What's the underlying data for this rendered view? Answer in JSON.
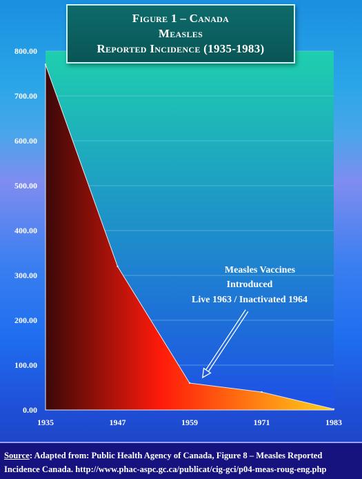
{
  "title": {
    "line1": "Figure 1 – Canada",
    "line2": "Measles",
    "line3": "Reported Incidence (1935-1983)"
  },
  "chart_data": {
    "type": "area",
    "x": [
      1935,
      1947,
      1959,
      1971,
      1983
    ],
    "values": [
      770,
      320,
      60,
      40,
      2
    ],
    "xticks": [
      "1935",
      "1947",
      "1959",
      "1971",
      "1983"
    ],
    "yticks": [
      "0.00",
      "100.00",
      "200.00",
      "300.00",
      "400.00",
      "500.00",
      "600.00",
      "700.00",
      "800.00"
    ],
    "ylim": [
      0,
      800
    ],
    "xlim": [
      1935,
      1983
    ],
    "grid": true,
    "annotation": {
      "lines": [
        "Measles Vaccines",
        "Introduced",
        "Live 1963 / Inactivated 1964"
      ],
      "arrow_target_x": 1963,
      "arrow_target_y": 60
    },
    "colors": {
      "plot_top": "#1ecfae",
      "plot_bottom": "#1e4fe6",
      "area_left": "#3a0808",
      "area_mid": "#ff1a0a",
      "area_right": "#ffd21a",
      "grid": "#7ec8ef"
    }
  },
  "footer": {
    "source_label": "Source",
    "line1_rest": ": Adapted from: Public Health Agency of Canada, Figure 8 – Measles Reported",
    "line2": "Incidence Canada. http://www.phac-aspc.gc.ca/publicat/cig-gci/p04-meas-roug-eng.php"
  }
}
